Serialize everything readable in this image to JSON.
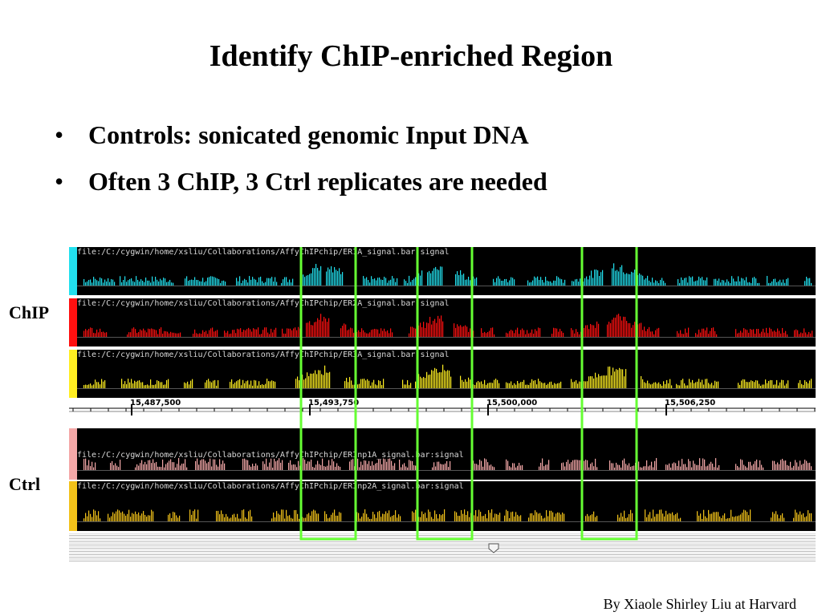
{
  "title": "Identify ChIP-enriched Region",
  "bullets": [
    "Controls: sonicated genomic Input DNA",
    "Often 3 ChIP, 3 Ctrl replicates are needed"
  ],
  "bullet_symbol": "•",
  "labels": {
    "chip": "ChIP",
    "ctrl": "Ctrl"
  },
  "footer": "By Xiaole Shirley Liu at Harvard",
  "browser": {
    "tracks": [
      {
        "label": "file:/C:/cygwin/home/xsliu/Collaborations/AffyChIPchip/ER1A_signal.bar:signal",
        "color": "#22e0ee",
        "group": "chip"
      },
      {
        "label": "file:/C:/cygwin/home/xsliu/Collaborations/AffyChIPchip/ER2A_signal.bar:signal",
        "color": "#ff1010",
        "group": "chip"
      },
      {
        "label": "file:/C:/cygwin/home/xsliu/Collaborations/AffyChIPchip/ER3A_signal.bar:signal",
        "color": "#ffee22",
        "group": "chip"
      },
      {
        "label": "file:/C:/cygwin/home/xsliu/Collaborations/AffyChIPchip/ERInp1A_signal.bar:signal",
        "color": "#f4a8a8",
        "group": "ctrl"
      },
      {
        "label": "file:/C:/cygwin/home/xsliu/Collaborations/AffyChIPchip/ERInp2A_signal.bar:signal",
        "color": "#f2c21a",
        "group": "ctrl"
      }
    ],
    "ruler_ticks": [
      "15,487,500",
      "15,493,750",
      "15,500,000",
      "15,506,250"
    ],
    "highlight_color": "#66ff33"
  }
}
